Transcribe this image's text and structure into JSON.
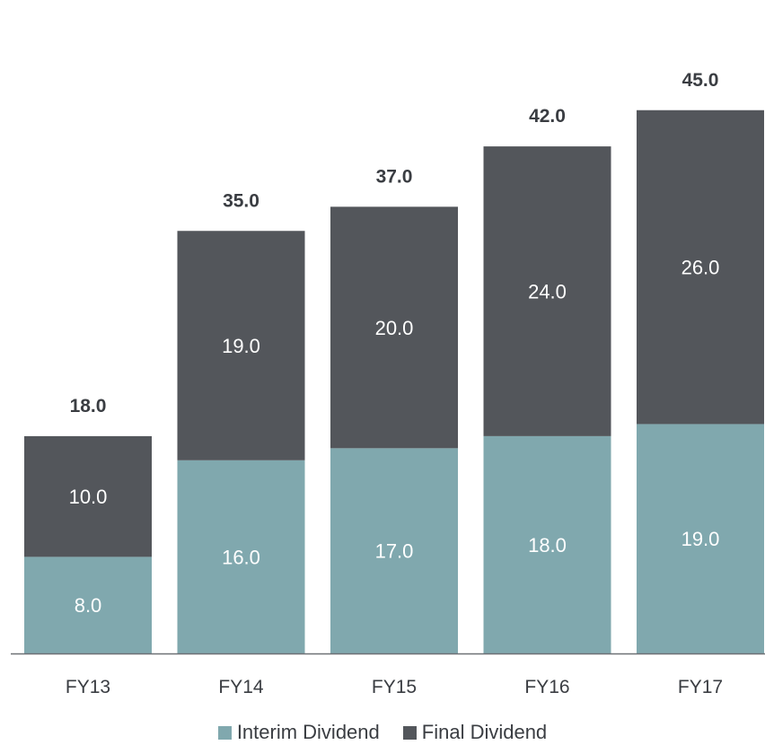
{
  "colors": {
    "interim": "#80a8ae",
    "final": "#53565b",
    "axis": "#6e7176",
    "text": "#3a3d42"
  },
  "legend": {
    "interim_label": "Interim Dividend",
    "final_label": "Final Dividend"
  },
  "chart_data": {
    "type": "bar",
    "stacked": true,
    "categories": [
      "FY13",
      "FY14",
      "FY15",
      "FY16",
      "FY17"
    ],
    "series": [
      {
        "name": "Interim Dividend",
        "values": [
          8.0,
          16.0,
          17.0,
          18.0,
          19.0
        ]
      },
      {
        "name": "Final Dividend",
        "values": [
          10.0,
          19.0,
          20.0,
          24.0,
          26.0
        ]
      }
    ],
    "totals": [
      18.0,
      35.0,
      37.0,
      42.0,
      45.0
    ],
    "value_labels": {
      "interim": [
        "8.0",
        "16.0",
        "17.0",
        "18.0",
        "19.0"
      ],
      "final": [
        "10.0",
        "19.0",
        "20.0",
        "24.0",
        "26.0"
      ],
      "totals": [
        "18.0",
        "35.0",
        "37.0",
        "42.0",
        "45.0"
      ]
    },
    "title": "",
    "xlabel": "",
    "ylabel": "",
    "ylim": [
      0,
      45
    ],
    "grid": false,
    "legend_position": "bottom"
  }
}
